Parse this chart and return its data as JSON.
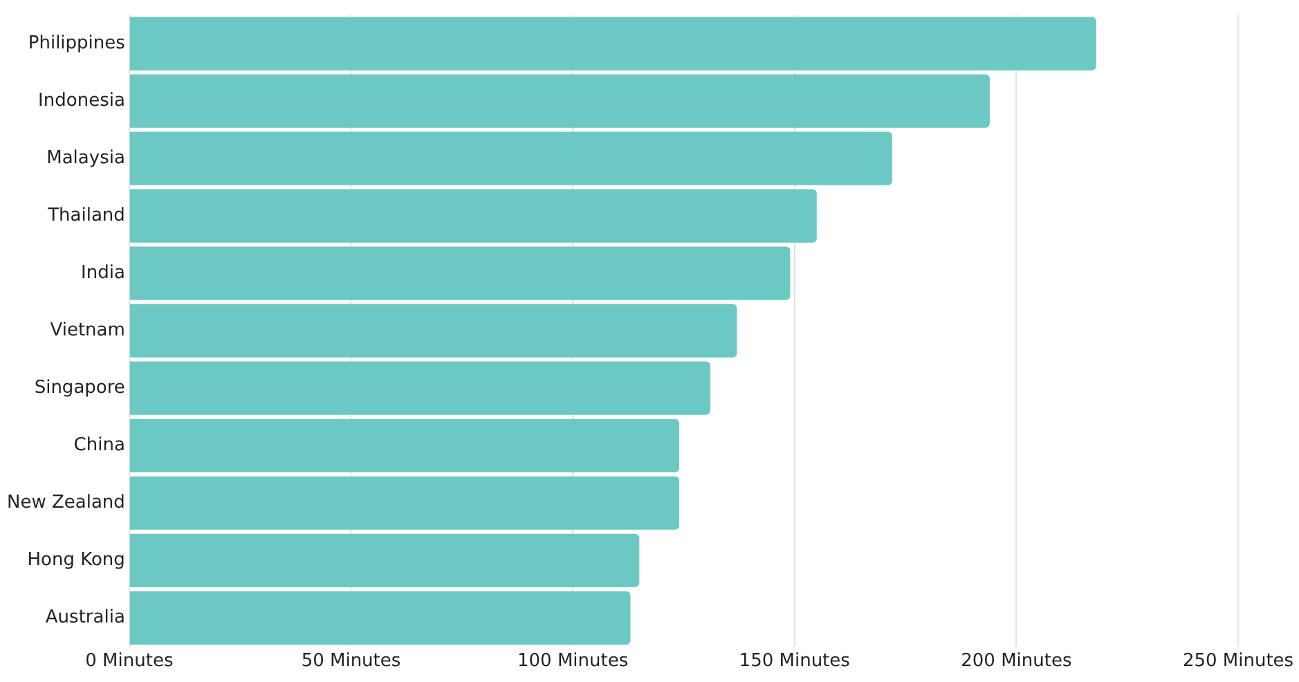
{
  "chart_data": {
    "type": "bar",
    "orientation": "horizontal",
    "categories": [
      "Philippines",
      "Indonesia",
      "Malaysia",
      "Thailand",
      "India",
      "Vietnam",
      "Singapore",
      "China",
      "New Zealand",
      "Hong Kong",
      "Australia"
    ],
    "values": [
      218,
      194,
      172,
      155,
      149,
      137,
      131,
      124,
      124,
      115,
      113
    ],
    "color": "#6cc8c2",
    "xlim": [
      0,
      250
    ],
    "xticks": [
      {
        "value": 0,
        "label": "0 Minutes"
      },
      {
        "value": 50,
        "label": "50 Minutes"
      },
      {
        "value": 100,
        "label": "100 Minutes"
      },
      {
        "value": 150,
        "label": "150 Minutes"
      },
      {
        "value": 200,
        "label": "200 Minutes"
      },
      {
        "value": 250,
        "label": "250 Minutes"
      }
    ],
    "grid": "x",
    "legend": false
  }
}
